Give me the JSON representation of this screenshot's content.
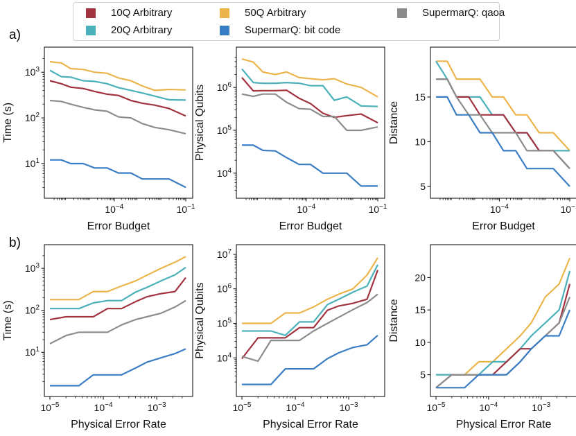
{
  "legend": {
    "items": [
      {
        "label": "10Q Arbitrary",
        "color": "#a1323f"
      },
      {
        "label": "20Q Arbitrary",
        "color": "#4ab1ba"
      },
      {
        "label": "50Q Arbitrary",
        "color": "#ebb54b"
      },
      {
        "label": "SupermarQ: bit code",
        "color": "#3a7dc4"
      },
      {
        "label": "SupermarQ: qaoa",
        "color": "#8c8c8c"
      }
    ]
  },
  "row_labels": {
    "a": "a)",
    "b": "b)"
  },
  "chart_data": [
    {
      "id": "a-time",
      "type": "line",
      "xscale": "log",
      "yscale": "log",
      "xlabel": "Error Budget",
      "ylabel": "Time (s)",
      "xlim": [
        2e-07,
        0.1
      ],
      "ylim": [
        2.3,
        2500
      ],
      "xticks": [
        {
          "value": 0.0001,
          "base": "10",
          "exp": "−4"
        },
        {
          "value": 0.1,
          "base": "10",
          "exp": "−1"
        }
      ],
      "yticks": [
        {
          "value": 10,
          "base": "10",
          "exp": "1"
        },
        {
          "value": 100,
          "base": "10",
          "exp": "2"
        },
        {
          "value": 1000,
          "base": "10",
          "exp": "3"
        }
      ],
      "x": [
        2e-07,
        6e-07,
        1.5e-06,
        5e-06,
        1.5e-05,
        5e-05,
        0.00015,
        0.0005,
        0.0015,
        0.005,
        0.02,
        0.1
      ],
      "series": [
        {
          "name": "50Q Arbitrary",
          "values": [
            1700,
            1600,
            1200,
            1150,
            1000,
            950,
            750,
            650,
            500,
            400,
            420,
            410
          ]
        },
        {
          "name": "20Q Arbitrary",
          "values": [
            1100,
            800,
            780,
            650,
            630,
            560,
            460,
            400,
            350,
            300,
            250,
            245
          ]
        },
        {
          "name": "10Q Arbitrary",
          "values": [
            650,
            560,
            470,
            440,
            380,
            330,
            310,
            240,
            210,
            190,
            160,
            110
          ]
        },
        {
          "name": "SupermarQ: qaoa",
          "values": [
            240,
            230,
            200,
            170,
            150,
            140,
            105,
            100,
            75,
            62,
            55,
            45
          ]
        },
        {
          "name": "SupermarQ: bit code",
          "values": [
            12,
            12,
            10,
            10,
            8,
            8,
            6.2,
            6.2,
            4.6,
            4.6,
            4.6,
            3
          ]
        }
      ]
    },
    {
      "id": "a-qubits",
      "type": "line",
      "xscale": "log",
      "yscale": "log",
      "xlabel": "Error Budget",
      "ylabel": "Physical Qubits",
      "xlim": [
        2e-07,
        0.1
      ],
      "ylim": [
        3500,
        6000000
      ],
      "xticks": [
        {
          "value": 0.0001,
          "base": "10",
          "exp": "−4"
        },
        {
          "value": 0.1,
          "base": "10",
          "exp": "−1"
        }
      ],
      "yticks": [
        {
          "value": 10000,
          "base": "10",
          "exp": "4"
        },
        {
          "value": 100000,
          "base": "10",
          "exp": "5"
        },
        {
          "value": 1000000,
          "base": "10",
          "exp": "6"
        }
      ],
      "x": [
        2e-07,
        6e-07,
        1.5e-06,
        5e-06,
        1.5e-05,
        5e-05,
        0.00015,
        0.0005,
        0.0015,
        0.005,
        0.02,
        0.1
      ],
      "series": [
        {
          "name": "50Q Arbitrary",
          "values": [
            4600000,
            3900000,
            2300000,
            2000000,
            2300000,
            1700000,
            1600000,
            1500000,
            1600000,
            1200000,
            1000000,
            600000
          ]
        },
        {
          "name": "20Q Arbitrary",
          "values": [
            2700000,
            1300000,
            1250000,
            1250000,
            1300000,
            1250000,
            1100000,
            1100000,
            500000,
            600000,
            370000,
            360000
          ]
        },
        {
          "name": "10Q Arbitrary",
          "values": [
            1700000,
            830000,
            840000,
            840000,
            860000,
            560000,
            420000,
            250000,
            200000,
            220000,
            240000,
            150000
          ]
        },
        {
          "name": "SupermarQ: qaoa",
          "values": [
            700000,
            620000,
            700000,
            700000,
            450000,
            320000,
            310000,
            210000,
            210000,
            100000,
            100000,
            120000
          ]
        },
        {
          "name": "SupermarQ: bit code",
          "values": [
            45000,
            45000,
            34000,
            33000,
            23000,
            16000,
            16000,
            10000,
            10000,
            10000,
            5000,
            5000
          ]
        }
      ]
    },
    {
      "id": "a-distance",
      "type": "line",
      "xscale": "log",
      "yscale": "linear",
      "xlabel": "Error Budget",
      "ylabel": "Distance",
      "xlim": [
        2e-07,
        0.1
      ],
      "ylim": [
        4.3,
        19.8
      ],
      "xticks": [
        {
          "value": 0.0001,
          "base": "10",
          "exp": "−4"
        },
        {
          "value": 0.1,
          "base": "10",
          "exp": "−1"
        }
      ],
      "yticks": [
        {
          "value": 5,
          "label": "5"
        },
        {
          "value": 10,
          "label": "10"
        },
        {
          "value": 15,
          "label": "15"
        }
      ],
      "x": [
        2e-07,
        6e-07,
        1.5e-06,
        5e-06,
        1.5e-05,
        5e-05,
        0.00015,
        0.0005,
        0.0015,
        0.005,
        0.02,
        0.1
      ],
      "series": [
        {
          "name": "50Q Arbitrary",
          "values": [
            19,
            19,
            17,
            17,
            17,
            15,
            15,
            13,
            13,
            11,
            11,
            9
          ]
        },
        {
          "name": "20Q Arbitrary",
          "values": [
            19,
            17,
            15,
            15,
            15,
            13,
            13,
            11,
            11,
            9,
            9,
            9
          ]
        },
        {
          "name": "10Q Arbitrary",
          "values": [
            17,
            17,
            15,
            15,
            13,
            13,
            13,
            11,
            11,
            9,
            9,
            7
          ]
        },
        {
          "name": "SupermarQ: qaoa",
          "values": [
            17,
            17,
            15,
            13,
            13,
            11,
            11,
            11,
            9,
            9,
            9,
            7
          ]
        },
        {
          "name": "SupermarQ: bit code",
          "values": [
            15,
            15,
            13,
            13,
            11,
            11,
            9,
            9,
            7,
            7,
            7,
            5
          ]
        }
      ]
    },
    {
      "id": "b-time",
      "type": "line",
      "xscale": "log",
      "yscale": "log",
      "xlabel": "Physical Error Rate",
      "ylabel": "Time (s)",
      "xlim": [
        1e-05,
        0.0035
      ],
      "ylim": [
        1.2,
        2500
      ],
      "xticks": [
        {
          "value": 1e-05,
          "base": "10",
          "exp": "−5"
        },
        {
          "value": 0.0001,
          "base": "10",
          "exp": "−4"
        },
        {
          "value": 0.001,
          "base": "10",
          "exp": "−3"
        }
      ],
      "yticks": [
        {
          "value": 10,
          "base": "10",
          "exp": "1"
        },
        {
          "value": 100,
          "base": "10",
          "exp": "2"
        },
        {
          "value": 1000,
          "base": "10",
          "exp": "3"
        }
      ],
      "x": [
        1e-05,
        2e-05,
        3.5e-05,
        6.5e-05,
        0.00012,
        0.00022,
        0.0004,
        0.00065,
        0.0012,
        0.0022,
        0.0035
      ],
      "series": [
        {
          "name": "50Q Arbitrary",
          "values": [
            180,
            180,
            180,
            280,
            280,
            380,
            500,
            680,
            1000,
            1400,
            1900
          ]
        },
        {
          "name": "20Q Arbitrary",
          "values": [
            110,
            110,
            110,
            150,
            170,
            170,
            270,
            350,
            500,
            700,
            1050
          ]
        },
        {
          "name": "10Q Arbitrary",
          "values": [
            60,
            70,
            70,
            70,
            110,
            110,
            160,
            210,
            250,
            280,
            600
          ]
        },
        {
          "name": "SupermarQ: qaoa",
          "values": [
            16,
            25,
            30,
            30,
            30,
            45,
            60,
            70,
            85,
            120,
            170
          ]
        },
        {
          "name": "SupermarQ: bit code",
          "values": [
            1.6,
            1.6,
            1.6,
            2.9,
            2.9,
            2.9,
            4.2,
            5.8,
            7.4,
            9.3,
            12
          ]
        }
      ]
    },
    {
      "id": "b-qubits",
      "type": "line",
      "xscale": "log",
      "yscale": "log",
      "xlabel": "Physical Error Rate",
      "ylabel": "Physical Qubits",
      "xlim": [
        1e-05,
        0.0035
      ],
      "ylim": [
        1100,
        12000000
      ],
      "xticks": [
        {
          "value": 1e-05,
          "base": "10",
          "exp": "−5"
        },
        {
          "value": 0.0001,
          "base": "10",
          "exp": "−4"
        },
        {
          "value": 0.001,
          "base": "10",
          "exp": "−3"
        }
      ],
      "yticks": [
        {
          "value": 10000,
          "base": "10",
          "exp": "4"
        },
        {
          "value": 100000,
          "base": "10",
          "exp": "5"
        },
        {
          "value": 1000000,
          "base": "10",
          "exp": "6"
        },
        {
          "value": 10000000,
          "base": "10",
          "exp": "7"
        }
      ],
      "x": [
        1e-05,
        2e-05,
        3.5e-05,
        6.5e-05,
        0.00012,
        0.00022,
        0.0004,
        0.00065,
        0.0012,
        0.0022,
        0.0035
      ],
      "series": [
        {
          "name": "50Q Arbitrary",
          "values": [
            100000,
            100000,
            100000,
            200000,
            200000,
            300000,
            500000,
            700000,
            1000000,
            2500000,
            8000000
          ]
        },
        {
          "name": "20Q Arbitrary",
          "values": [
            60000,
            60000,
            60000,
            45000,
            110000,
            110000,
            350000,
            500000,
            800000,
            1200000,
            5000000
          ]
        },
        {
          "name": "10Q Arbitrary",
          "values": [
            9500,
            38000,
            38000,
            38000,
            75000,
            75000,
            240000,
            320000,
            380000,
            500000,
            3500000
          ]
        },
        {
          "name": "SupermarQ: qaoa",
          "values": [
            11000,
            8000,
            32000,
            32000,
            32000,
            60000,
            100000,
            150000,
            250000,
            400000,
            700000
          ]
        },
        {
          "name": "SupermarQ: bit code",
          "values": [
            1700,
            1700,
            1700,
            4800,
            4800,
            4800,
            9500,
            14000,
            20000,
            24000,
            45000
          ]
        }
      ]
    },
    {
      "id": "b-distance",
      "type": "line",
      "xscale": "log",
      "yscale": "linear",
      "xlabel": "Physical Error Rate",
      "ylabel": "Distance",
      "xlim": [
        1e-05,
        0.0035
      ],
      "ylim": [
        2.5,
        24
      ],
      "xticks": [
        {
          "value": 1e-05,
          "base": "10",
          "exp": "−5"
        },
        {
          "value": 0.0001,
          "base": "10",
          "exp": "−4"
        },
        {
          "value": 0.001,
          "base": "10",
          "exp": "−3"
        }
      ],
      "yticks": [
        {
          "value": 5,
          "label": "5"
        },
        {
          "value": 10,
          "label": "10"
        },
        {
          "value": 15,
          "label": "15"
        },
        {
          "value": 20,
          "label": "20"
        }
      ],
      "x": [
        1e-05,
        2e-05,
        3.5e-05,
        6.5e-05,
        0.00012,
        0.00022,
        0.0004,
        0.00065,
        0.0012,
        0.0022,
        0.0035
      ],
      "series": [
        {
          "name": "50Q Arbitrary",
          "values": [
            5,
            5,
            5,
            7,
            7,
            9,
            11,
            13,
            17,
            19,
            23
          ]
        },
        {
          "name": "20Q Arbitrary",
          "values": [
            5,
            5,
            5,
            5,
            7,
            7,
            9,
            11,
            13,
            15,
            21
          ]
        },
        {
          "name": "10Q Arbitrary",
          "values": [
            3,
            5,
            5,
            5,
            5,
            7,
            9,
            9,
            11,
            13,
            19
          ]
        },
        {
          "name": "SupermarQ: qaoa",
          "values": [
            3,
            5,
            5,
            5,
            5,
            5,
            7,
            9,
            11,
            13,
            17
          ]
        },
        {
          "name": "SupermarQ: bit code",
          "values": [
            3,
            3,
            3,
            5,
            5,
            5,
            7,
            9,
            11,
            11,
            15
          ]
        }
      ]
    }
  ]
}
